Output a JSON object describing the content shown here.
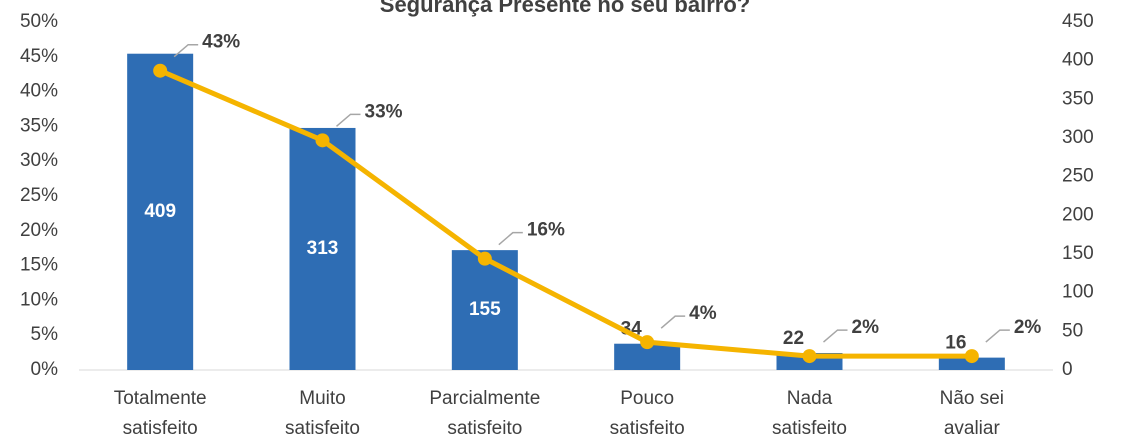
{
  "chart_data": {
    "type": "bar_line",
    "title": "Segurança Presente no seu bairro?",
    "categories": [
      [
        "Totalmente",
        "satisfeito"
      ],
      [
        "Muito",
        "satisfeito"
      ],
      [
        "Parcialmente",
        "satisfeito"
      ],
      [
        "Pouco",
        "satisfeito"
      ],
      [
        "Nada",
        "satisfeito"
      ],
      [
        "Não sei",
        "avaliar"
      ]
    ],
    "series": [
      {
        "type": "bar",
        "color": "#2e6db4",
        "axis": "y2",
        "values": [
          409,
          313,
          155,
          34,
          22,
          16
        ]
      },
      {
        "type": "line",
        "color": "#f5b400",
        "axis": "y",
        "values": [
          43,
          33,
          16,
          4,
          2,
          2
        ],
        "value_labels": [
          "43%",
          "33%",
          "16%",
          "4%",
          "2%",
          "2%"
        ]
      }
    ],
    "ylim": [
      0,
      50
    ],
    "yticks": [
      {
        "value": 0,
        "label": "0%"
      },
      {
        "value": 5,
        "label": "5%"
      },
      {
        "value": 10,
        "label": "10%"
      },
      {
        "value": 15,
        "label": "15%"
      },
      {
        "value": 20,
        "label": "20%"
      },
      {
        "value": 25,
        "label": "25%"
      },
      {
        "value": 30,
        "label": "30%"
      },
      {
        "value": 35,
        "label": "35%"
      },
      {
        "value": 40,
        "label": "40%"
      },
      {
        "value": 45,
        "label": "45%"
      },
      {
        "value": 50,
        "label": "50%"
      }
    ],
    "y2lim": [
      0,
      450
    ],
    "y2ticks": [
      0,
      50,
      100,
      150,
      200,
      250,
      300,
      350,
      400,
      450
    ]
  }
}
